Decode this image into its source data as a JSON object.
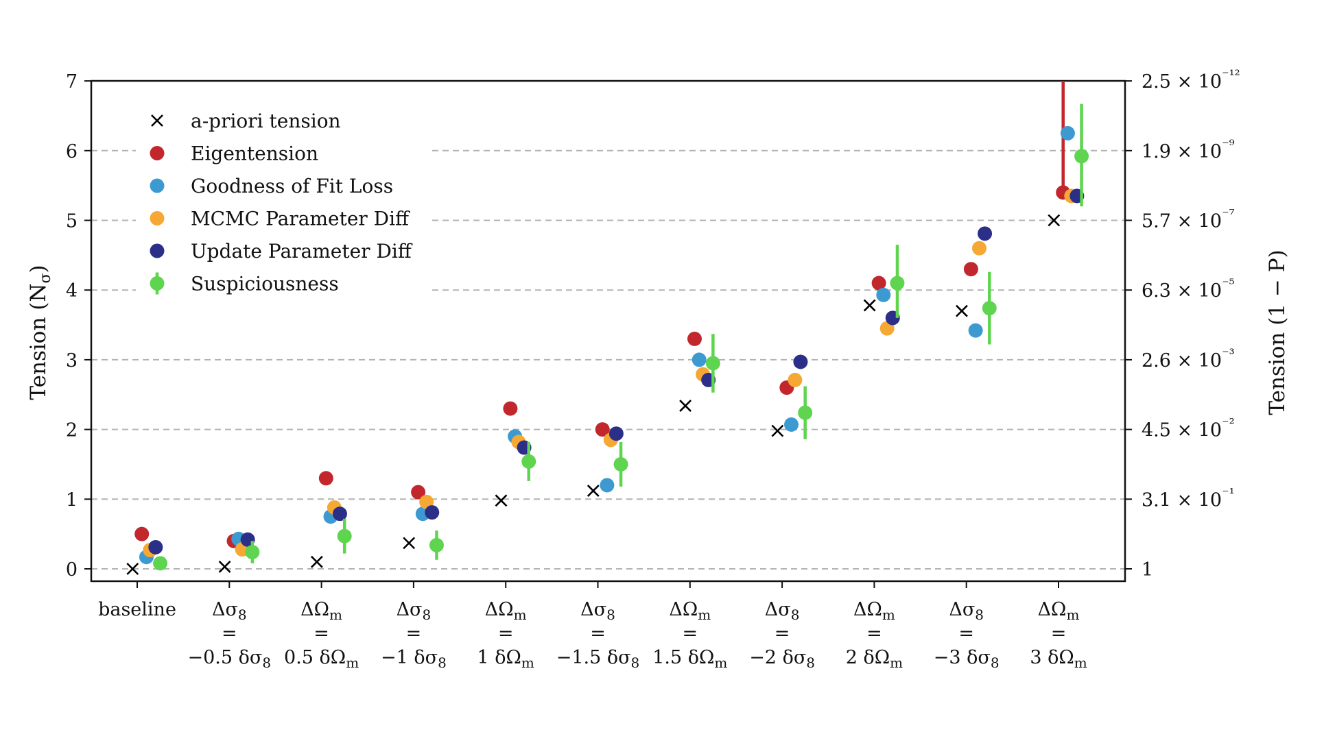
{
  "chart_data": {
    "type": "scatter",
    "xlabel": "",
    "ylabel": "Tension (N_σ)",
    "ylabel_right": "Tension (1 − P)",
    "ylim": [
      -0.18,
      7.0
    ],
    "grid": "horizontal dashed gray",
    "legend_placement": "top-left",
    "categories": [
      [
        "baseline"
      ],
      [
        "Δσ8",
        "=",
        "−0.5 δσ8"
      ],
      [
        "ΔΩm",
        "=",
        "0.5 δΩm"
      ],
      [
        "Δσ8",
        "=",
        "−1 δσ8"
      ],
      [
        "ΔΩm",
        "=",
        "1 δΩm"
      ],
      [
        "Δσ8",
        "=",
        "−1.5 δσ8"
      ],
      [
        "ΔΩm",
        "=",
        "1.5 δΩm"
      ],
      [
        "Δσ8",
        "=",
        "−2 δσ8"
      ],
      [
        "ΔΩm",
        "=",
        "2 δΩm"
      ],
      [
        "Δσ8",
        "=",
        "−3 δσ8"
      ],
      [
        "ΔΩm",
        "=",
        "3 δΩm"
      ]
    ],
    "y_ticks": [
      0,
      1,
      2,
      3,
      4,
      5,
      6,
      7
    ],
    "right_ticks": [
      {
        "y": 0,
        "label": "1"
      },
      {
        "y": 1,
        "label": "3.1 × 10⁻¹"
      },
      {
        "y": 2,
        "label": "4.5 × 10⁻²"
      },
      {
        "y": 3,
        "label": "2.6 × 10⁻³"
      },
      {
        "y": 4,
        "label": "6.3 × 10⁻⁵"
      },
      {
        "y": 5,
        "label": "5.7 × 10⁻⁷"
      },
      {
        "y": 6,
        "label": "1.9 × 10⁻⁹"
      },
      {
        "y": 7,
        "label": "2.5 × 10⁻¹²"
      }
    ],
    "series": [
      {
        "name": "a-priori tension",
        "marker": "x",
        "color": "#000000",
        "offset": -0.05,
        "values": [
          0.0,
          0.03,
          0.1,
          0.37,
          0.98,
          1.12,
          2.34,
          1.98,
          3.78,
          3.7,
          5.0
        ]
      },
      {
        "name": "Eigentension",
        "marker": "circle",
        "color": "#c1272d",
        "offset": 0.05,
        "values": [
          0.5,
          0.4,
          1.3,
          1.1,
          2.3,
          2.0,
          3.3,
          2.6,
          4.1,
          4.3,
          5.4
        ],
        "err_low": [
          0,
          0,
          0,
          0,
          0,
          0,
          0,
          0,
          0,
          0,
          0
        ],
        "err_high": [
          0,
          0,
          0,
          0,
          0,
          0,
          0,
          0,
          0,
          0,
          1.7
        ]
      },
      {
        "name": "Goodness of Fit Loss",
        "marker": "circle",
        "color": "#3d9ad1",
        "offset": 0.1,
        "values": [
          0.17,
          0.43,
          0.75,
          0.79,
          1.9,
          1.2,
          3.0,
          2.07,
          3.93,
          3.42,
          6.25
        ]
      },
      {
        "name": "MCMC Parameter Diff",
        "marker": "circle",
        "color": "#f5a833",
        "offset": 0.14,
        "values": [
          0.27,
          0.28,
          0.88,
          0.96,
          1.82,
          1.85,
          2.79,
          2.71,
          3.45,
          4.6,
          5.35
        ]
      },
      {
        "name": "Update Parameter Diff",
        "marker": "circle",
        "color": "#2b2f87",
        "offset": 0.2,
        "values": [
          0.31,
          0.42,
          0.79,
          0.81,
          1.74,
          1.94,
          2.71,
          2.97,
          3.6,
          4.81,
          5.35
        ]
      },
      {
        "name": "Suspiciousness",
        "marker": "circle-errorbar",
        "color": "#5fd44f",
        "offset": 0.25,
        "values": [
          0.08,
          0.24,
          0.47,
          0.34,
          1.54,
          1.5,
          2.95,
          2.24,
          4.1,
          3.74,
          5.92
        ],
        "err_low": [
          0.0,
          0.16,
          0.25,
          0.21,
          0.28,
          0.32,
          0.42,
          0.38,
          0.5,
          0.52,
          0.72
        ],
        "err_high": [
          0.0,
          0.16,
          0.25,
          0.21,
          0.28,
          0.32,
          0.42,
          0.38,
          0.55,
          0.52,
          0.75
        ]
      }
    ]
  }
}
